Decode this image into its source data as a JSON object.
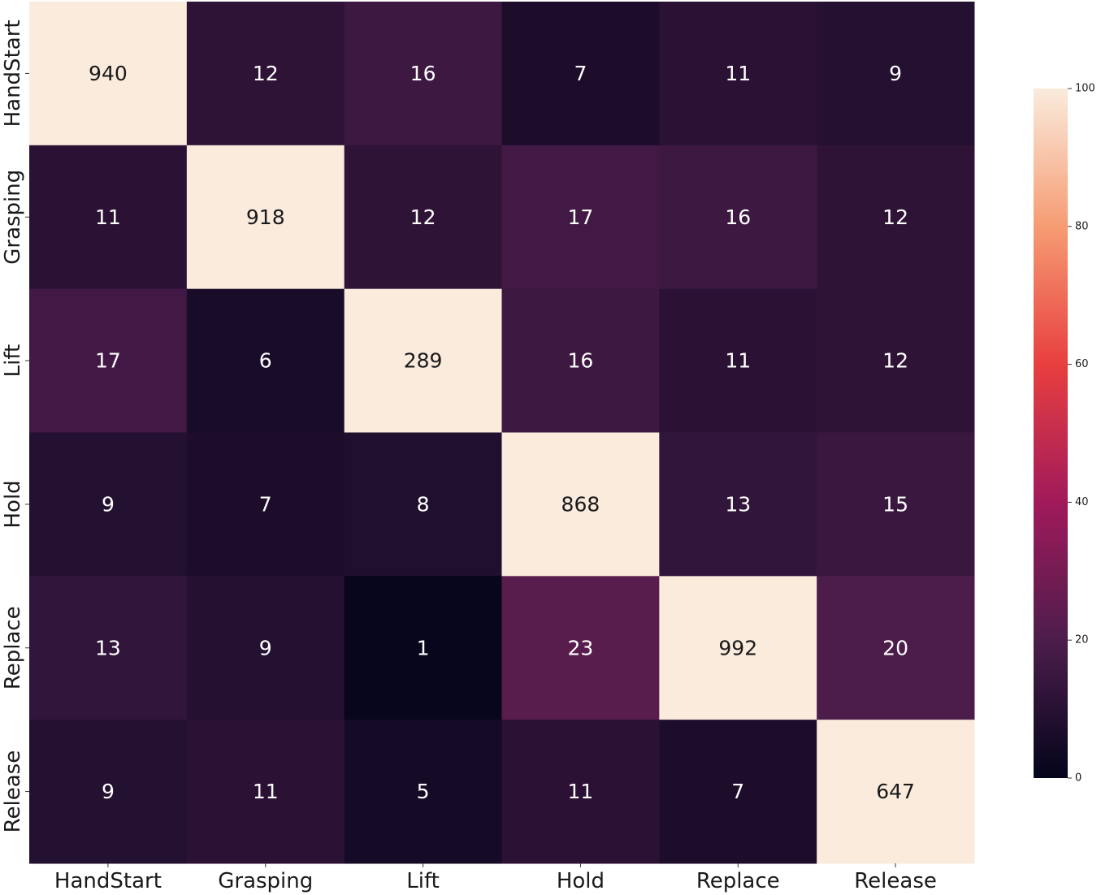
{
  "chart_data": {
    "type": "heatmap",
    "x_categories": [
      "HandStart",
      "Grasping",
      "Lift",
      "Hold",
      "Replace",
      "Release"
    ],
    "y_categories": [
      "HandStart",
      "Grasping",
      "Lift",
      "Hold",
      "Replace",
      "Release"
    ],
    "values": [
      [
        940,
        12,
        16,
        7,
        11,
        9
      ],
      [
        11,
        918,
        12,
        17,
        16,
        12
      ],
      [
        17,
        6,
        289,
        16,
        11,
        12
      ],
      [
        9,
        7,
        8,
        868,
        13,
        15
      ],
      [
        13,
        9,
        1,
        23,
        992,
        20
      ],
      [
        9,
        11,
        5,
        11,
        7,
        647
      ]
    ],
    "colorbar": {
      "range": [
        0,
        100
      ],
      "ticks": [
        0,
        20,
        40,
        60,
        80,
        100
      ],
      "colormap": "rocket",
      "stops": [
        "#03051a",
        "#4c1d4b",
        "#a11a5b",
        "#e83f3f",
        "#f69c73",
        "#faebdd"
      ]
    },
    "title": "",
    "xlabel": "",
    "ylabel": ""
  }
}
